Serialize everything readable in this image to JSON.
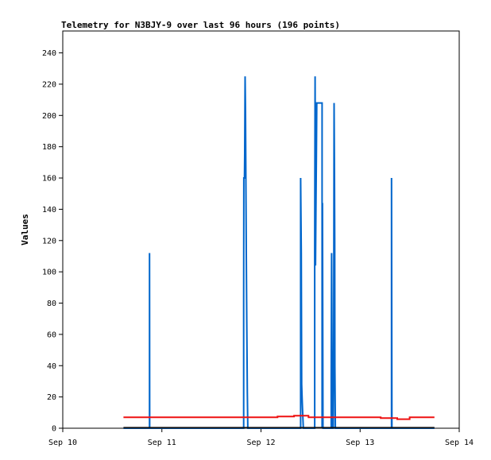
{
  "chart_data": {
    "type": "line",
    "title": "Telemetry for N3BJY-9 over last 96 hours (196 points)",
    "ylabel": "Values",
    "xlabel": "",
    "x_unit": "hours since Sep 10 00:00",
    "xlim": [
      0,
      96
    ],
    "ylim": [
      0,
      254
    ],
    "yticks": [
      0,
      20,
      40,
      60,
      80,
      100,
      120,
      140,
      160,
      180,
      200,
      220,
      240
    ],
    "xticks": [
      {
        "x": 0,
        "label": "Sep 10"
      },
      {
        "x": 24,
        "label": "Sep 11"
      },
      {
        "x": 48,
        "label": "Sep 12"
      },
      {
        "x": 72,
        "label": "Sep 13"
      },
      {
        "x": 96,
        "label": "Sep 14"
      }
    ],
    "grid": false,
    "series": [
      {
        "color": "#0066cc",
        "points": [
          [
            14.7,
            0
          ],
          [
            21.0,
            0
          ],
          [
            21.0,
            112
          ],
          [
            21.05,
            0
          ],
          [
            43.8,
            0
          ],
          [
            43.8,
            80
          ],
          [
            43.85,
            160
          ],
          [
            44.0,
            160
          ],
          [
            44.05,
            176
          ],
          [
            44.15,
            225
          ],
          [
            44.25,
            202
          ],
          [
            44.35,
            157
          ],
          [
            44.45,
            112
          ],
          [
            44.55,
            68
          ],
          [
            44.7,
            23
          ],
          [
            44.8,
            0
          ],
          [
            57.6,
            0
          ],
          [
            57.6,
            160
          ],
          [
            57.75,
            112
          ],
          [
            57.85,
            28
          ],
          [
            57.95,
            20
          ],
          [
            58.05,
            13
          ],
          [
            58.25,
            0
          ],
          [
            61.0,
            0
          ],
          [
            61.0,
            112
          ],
          [
            61.1,
            225
          ],
          [
            61.2,
            104
          ],
          [
            61.3,
            137
          ],
          [
            61.4,
            173
          ],
          [
            61.5,
            208
          ],
          [
            62.8,
            208
          ],
          [
            62.8,
            0
          ],
          [
            62.9,
            144
          ],
          [
            63.0,
            0
          ],
          [
            65.0,
            0
          ],
          [
            65.0,
            32
          ],
          [
            65.1,
            112
          ],
          [
            65.2,
            56
          ],
          [
            65.3,
            0
          ],
          [
            65.5,
            0
          ],
          [
            65.6,
            52
          ],
          [
            65.7,
            208
          ],
          [
            65.8,
            160
          ],
          [
            65.85,
            120
          ],
          [
            65.9,
            40
          ],
          [
            66.0,
            0
          ],
          [
            79.6,
            0
          ],
          [
            79.6,
            160
          ],
          [
            79.7,
            0
          ],
          [
            90.0,
            0
          ]
        ]
      },
      {
        "color": "#ee1111",
        "points": [
          [
            14.7,
            7
          ],
          [
            52.0,
            7
          ],
          [
            52.0,
            7.5
          ],
          [
            56.0,
            7.5
          ],
          [
            56.0,
            8
          ],
          [
            59.5,
            8
          ],
          [
            59.5,
            7
          ],
          [
            77.0,
            7
          ],
          [
            77.0,
            6.5
          ],
          [
            81.0,
            6.5
          ],
          [
            81.0,
            5.8
          ],
          [
            84.0,
            5.8
          ],
          [
            84.0,
            7
          ],
          [
            90.0,
            7
          ]
        ]
      },
      {
        "color": "#111111",
        "points": [
          [
            14.7,
            0.3
          ],
          [
            90.0,
            0.3
          ]
        ]
      }
    ]
  }
}
